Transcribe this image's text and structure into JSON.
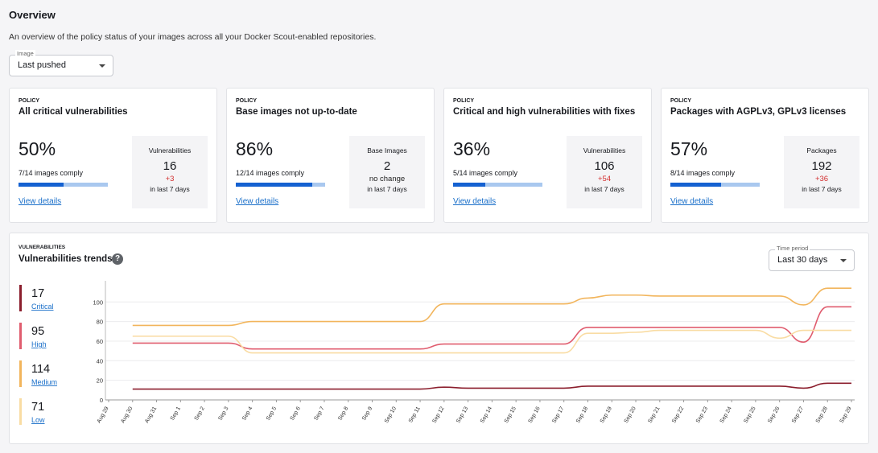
{
  "header": {
    "title": "Overview",
    "description": "An overview of the policy status of your images across all your Docker Scout-enabled repositories."
  },
  "image_select": {
    "label": "Image",
    "value": "Last pushed"
  },
  "policies": [
    {
      "label": "POLICY",
      "title": "All critical vulnerabilities",
      "percent": 50,
      "percent_label": "50%",
      "comply": "7/14 images comply",
      "link": "View details",
      "stat_label": "Vulnerabilities",
      "stat_value": "16",
      "change": "+3",
      "change_color": "#d32f2f",
      "period": "in last 7 days"
    },
    {
      "label": "POLICY",
      "title": "Base images not up-to-date",
      "percent": 86,
      "percent_label": "86%",
      "comply": "12/14 images comply",
      "link": "View details",
      "stat_label": "Base Images",
      "stat_value": "2",
      "change": "no change",
      "change_color": "#222222",
      "period": "in last 7 days"
    },
    {
      "label": "POLICY",
      "title": "Critical and high vulnerabilities with fixes",
      "percent": 36,
      "percent_label": "36%",
      "comply": "5/14 images comply",
      "link": "View details",
      "stat_label": "Vulnerabilities",
      "stat_value": "106",
      "change": "+54",
      "change_color": "#d32f2f",
      "period": "in last 7 days"
    },
    {
      "label": "POLICY",
      "title": "Packages with AGPLv3, GPLv3 licenses",
      "percent": 57,
      "percent_label": "57%",
      "comply": "8/14 images comply",
      "link": "View details",
      "stat_label": "Packages",
      "stat_value": "192",
      "change": "+36",
      "change_color": "#d32f2f",
      "period": "in last 7 days"
    }
  ],
  "trends": {
    "label": "VULNERABILITIES",
    "title": "Vulnerabilities trends",
    "period_select": {
      "label": "Time period",
      "value": "Last 30 days"
    },
    "chart_data": {
      "type": "line",
      "categories": [
        "Aug 29",
        "Aug 30",
        "Aug 31",
        "Sep 1",
        "Sep 2",
        "Sep 3",
        "Sep 4",
        "Sep 5",
        "Sep 6",
        "Sep 7",
        "Sep 8",
        "Sep 9",
        "Sep 10",
        "Sep 11",
        "Sep 12",
        "Sep 13",
        "Sep 14",
        "Sep 15",
        "Sep 16",
        "Sep 17",
        "Sep 18",
        "Sep 19",
        "Sep 20",
        "Sep 21",
        "Sep 22",
        "Sep 23",
        "Sep 24",
        "Sep 25",
        "Sep 26",
        "Sep 27",
        "Sep 28",
        "Sep 29"
      ],
      "ylim": [
        0,
        115
      ],
      "yticks": [
        0,
        20,
        40,
        60,
        80,
        100
      ],
      "grid": true,
      "series": [
        {
          "name": "Critical",
          "total": 17,
          "color": "#8b1e2d",
          "values": [
            null,
            11,
            11,
            11,
            11,
            11,
            11,
            11,
            11,
            11,
            11,
            11,
            11,
            11,
            13,
            12,
            12,
            12,
            12,
            12,
            14,
            14,
            14,
            14,
            14,
            14,
            14,
            14,
            14,
            12,
            17,
            17
          ]
        },
        {
          "name": "High",
          "total": 95,
          "color": "#e05d6f",
          "values": [
            null,
            58,
            58,
            58,
            58,
            58,
            52,
            52,
            52,
            52,
            52,
            52,
            52,
            52,
            57,
            57,
            57,
            57,
            57,
            57,
            74,
            74,
            74,
            74,
            74,
            74,
            74,
            74,
            74,
            59,
            95,
            95
          ]
        },
        {
          "name": "Medium",
          "total": 114,
          "color": "#f2b55c",
          "values": [
            null,
            76,
            76,
            76,
            76,
            76,
            80,
            80,
            80,
            80,
            80,
            80,
            80,
            80,
            98,
            98,
            98,
            98,
            98,
            98,
            104,
            107,
            107,
            106,
            106,
            106,
            106,
            106,
            106,
            97,
            114,
            114
          ]
        },
        {
          "name": "Low",
          "total": 71,
          "color": "#f9dca3",
          "values": [
            null,
            65,
            65,
            65,
            65,
            65,
            48,
            48,
            48,
            48,
            48,
            48,
            48,
            48,
            48,
            48,
            48,
            48,
            48,
            48,
            68,
            68,
            69,
            71,
            71,
            71,
            71,
            71,
            63,
            71,
            71,
            71
          ]
        }
      ]
    }
  }
}
